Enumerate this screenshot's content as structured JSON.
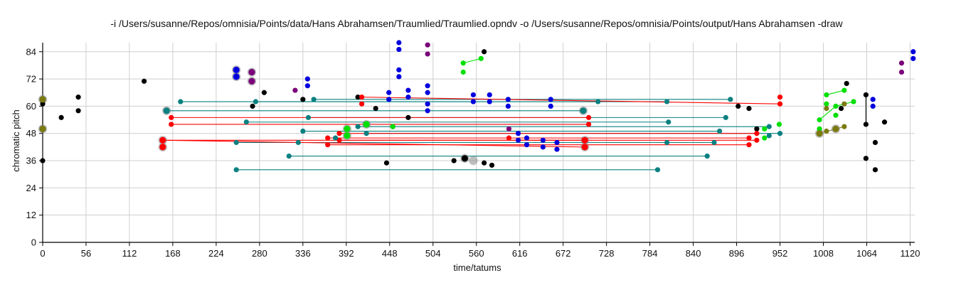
{
  "chart_data": {
    "type": "scatter",
    "title": "-i /Users/susanne/Repos/omnisia/Points/data/Hans Abrahamsen/Traumlied/Traumlied.opndv -o /Users/susanne/Repos/omnisia/Points/output/Hans Abrahamsen -draw",
    "xlabel": "time/tatums",
    "ylabel": "chromatic pitch",
    "xlim": [
      0,
      1126
    ],
    "ylim": [
      0,
      88
    ],
    "xticks": [
      0,
      56,
      112,
      168,
      224,
      280,
      336,
      392,
      448,
      504,
      560,
      616,
      672,
      728,
      784,
      840,
      896,
      952,
      1008,
      1064,
      1120
    ],
    "yticks": [
      0,
      12,
      24,
      36,
      48,
      60,
      72,
      84
    ],
    "grid": true,
    "colors": {
      "black": "#000000",
      "red": "#ff0000",
      "blue": "#0000dd",
      "teal": "#0a8080",
      "green": "#00e000",
      "purple": "#7a007a",
      "olive": "#7a7a10"
    },
    "series": [
      {
        "color": "black",
        "points": [
          [
            0,
            36
          ],
          [
            0,
            61
          ],
          [
            0,
            63
          ],
          [
            0,
            50
          ],
          [
            24,
            55
          ],
          [
            46,
            58
          ],
          [
            46,
            64
          ],
          [
            131,
            71
          ],
          [
            271,
            60
          ],
          [
            286,
            66
          ],
          [
            336,
            63
          ],
          [
            407,
            64
          ],
          [
            430,
            59
          ],
          [
            444,
            35
          ],
          [
            452,
            51
          ],
          [
            472,
            55
          ],
          [
            531,
            36
          ],
          [
            545,
            37
          ],
          [
            570,
            35
          ],
          [
            570,
            84
          ],
          [
            580,
            34
          ],
          [
            898,
            60
          ],
          [
            912,
            59
          ],
          [
            922,
            50
          ],
          [
            1031,
            59
          ],
          [
            1038,
            70
          ],
          [
            1063,
            65
          ],
          [
            1063,
            52
          ],
          [
            1063,
            37
          ],
          [
            1075,
            44
          ],
          [
            1075,
            32
          ],
          [
            1087,
            53
          ]
        ]
      },
      {
        "color": "red",
        "points": [
          [
            155,
            45
          ],
          [
            155,
            42
          ],
          [
            166,
            55
          ],
          [
            166,
            52
          ],
          [
            368,
            46
          ],
          [
            368,
            43
          ],
          [
            383,
            48
          ],
          [
            383,
            45
          ],
          [
            412,
            64
          ],
          [
            412,
            61
          ],
          [
            602,
            46
          ],
          [
            700,
            45
          ],
          [
            700,
            42
          ],
          [
            705,
            55
          ],
          [
            705,
            52
          ],
          [
            912,
            46
          ],
          [
            912,
            43
          ],
          [
            922,
            48
          ],
          [
            922,
            45
          ],
          [
            952,
            64
          ],
          [
            952,
            61
          ]
        ]
      },
      {
        "color": "blue",
        "points": [
          [
            250,
            76
          ],
          [
            250,
            73
          ],
          [
            342,
            72
          ],
          [
            342,
            69
          ],
          [
            447,
            66
          ],
          [
            447,
            63
          ],
          [
            460,
            88
          ],
          [
            460,
            85
          ],
          [
            460,
            76
          ],
          [
            460,
            73
          ],
          [
            472,
            67
          ],
          [
            472,
            64
          ],
          [
            497,
            69
          ],
          [
            497,
            66
          ],
          [
            497,
            61
          ],
          [
            497,
            58
          ],
          [
            556,
            65
          ],
          [
            556,
            62
          ],
          [
            577,
            65
          ],
          [
            577,
            62
          ],
          [
            601,
            63
          ],
          [
            601,
            60
          ],
          [
            614,
            48
          ],
          [
            614,
            45
          ],
          [
            625,
            46
          ],
          [
            625,
            43
          ],
          [
            646,
            45
          ],
          [
            646,
            42
          ],
          [
            664,
            44
          ],
          [
            664,
            41
          ],
          [
            656,
            63
          ],
          [
            656,
            60
          ],
          [
            1072,
            63
          ],
          [
            1072,
            60
          ],
          [
            1124,
            84
          ],
          [
            1124,
            81
          ]
        ]
      },
      {
        "color": "teal",
        "points": [
          [
            160,
            58
          ],
          [
            178,
            62
          ],
          [
            250,
            44
          ],
          [
            250,
            32
          ],
          [
            263,
            53
          ],
          [
            275,
            62
          ],
          [
            318,
            38
          ],
          [
            330,
            44
          ],
          [
            336,
            49
          ],
          [
            343,
            55
          ],
          [
            350,
            63
          ],
          [
            378,
            46
          ],
          [
            407,
            51
          ],
          [
            418,
            52
          ],
          [
            418,
            48
          ],
          [
            698,
            58
          ],
          [
            717,
            62
          ],
          [
            794,
            32
          ],
          [
            806,
            44
          ],
          [
            806,
            62
          ],
          [
            808,
            53
          ],
          [
            858,
            38
          ],
          [
            867,
            44
          ],
          [
            874,
            49
          ],
          [
            882,
            55
          ],
          [
            888,
            63
          ],
          [
            938,
            51
          ],
          [
            938,
            47
          ],
          [
            952,
            48
          ]
        ]
      },
      {
        "color": "green",
        "points": [
          [
            393,
            50
          ],
          [
            393,
            47
          ],
          [
            418,
            52
          ],
          [
            452,
            51
          ],
          [
            543,
            79
          ],
          [
            543,
            75
          ],
          [
            566,
            81
          ],
          [
            932,
            50
          ],
          [
            932,
            46
          ],
          [
            951,
            52
          ],
          [
            1003,
            54
          ],
          [
            1003,
            50
          ],
          [
            1012,
            65
          ],
          [
            1012,
            61
          ],
          [
            1024,
            60
          ],
          [
            1024,
            56
          ],
          [
            1035,
            67
          ],
          [
            1047,
            62
          ]
        ]
      },
      {
        "color": "purple",
        "points": [
          [
            270,
            75
          ],
          [
            270,
            71
          ],
          [
            326,
            67
          ],
          [
            497,
            87
          ],
          [
            497,
            83
          ],
          [
            602,
            50
          ],
          [
            1109,
            79
          ],
          [
            1109,
            75
          ]
        ]
      },
      {
        "color": "olive",
        "points": [
          [
            0,
            63
          ],
          [
            0,
            50
          ],
          [
            1003,
            48
          ],
          [
            1012,
            59
          ],
          [
            1012,
            49
          ],
          [
            1024,
            50
          ],
          [
            1035,
            61
          ],
          [
            1035,
            51
          ]
        ]
      }
    ],
    "segments": [
      {
        "color": "teal",
        "from": [
          160,
          58
        ],
        "to": [
          698,
          58
        ]
      },
      {
        "color": "teal",
        "from": [
          178,
          62
        ],
        "to": [
          717,
          62
        ]
      },
      {
        "color": "teal",
        "from": [
          250,
          44
        ],
        "to": [
          806,
          44
        ]
      },
      {
        "color": "teal",
        "from": [
          250,
          32
        ],
        "to": [
          794,
          32
        ]
      },
      {
        "color": "teal",
        "from": [
          263,
          53
        ],
        "to": [
          808,
          53
        ]
      },
      {
        "color": "teal",
        "from": [
          275,
          62
        ],
        "to": [
          806,
          62
        ]
      },
      {
        "color": "teal",
        "from": [
          318,
          38
        ],
        "to": [
          858,
          38
        ]
      },
      {
        "color": "teal",
        "from": [
          330,
          44
        ],
        "to": [
          867,
          44
        ]
      },
      {
        "color": "teal",
        "from": [
          336,
          49
        ],
        "to": [
          874,
          49
        ]
      },
      {
        "color": "teal",
        "from": [
          343,
          55
        ],
        "to": [
          882,
          55
        ]
      },
      {
        "color": "teal",
        "from": [
          350,
          63
        ],
        "to": [
          888,
          63
        ]
      },
      {
        "color": "teal",
        "from": [
          407,
          51
        ],
        "to": [
          938,
          51
        ]
      },
      {
        "color": "teal",
        "from": [
          418,
          48
        ],
        "to": [
          952,
          48
        ]
      },
      {
        "color": "red",
        "from": [
          155,
          45
        ],
        "to": [
          700,
          45
        ]
      },
      {
        "color": "red",
        "from": [
          155,
          45
        ],
        "to": [
          700,
          42
        ]
      },
      {
        "color": "red",
        "from": [
          166,
          55
        ],
        "to": [
          705,
          55
        ]
      },
      {
        "color": "red",
        "from": [
          166,
          52
        ],
        "to": [
          705,
          52
        ]
      },
      {
        "color": "red",
        "from": [
          368,
          46
        ],
        "to": [
          912,
          46
        ]
      },
      {
        "color": "red",
        "from": [
          368,
          43
        ],
        "to": [
          912,
          43
        ]
      },
      {
        "color": "red",
        "from": [
          383,
          48
        ],
        "to": [
          922,
          48
        ]
      },
      {
        "color": "red",
        "from": [
          383,
          45
        ],
        "to": [
          922,
          45
        ]
      },
      {
        "color": "red",
        "from": [
          412,
          64
        ],
        "to": [
          952,
          61
        ]
      },
      {
        "color": "green",
        "from": [
          543,
          79
        ],
        "to": [
          566,
          81
        ]
      },
      {
        "color": "green",
        "from": [
          1003,
          54
        ],
        "to": [
          1024,
          60
        ]
      },
      {
        "color": "green",
        "from": [
          1012,
          65
        ],
        "to": [
          1035,
          67
        ]
      },
      {
        "color": "green",
        "from": [
          1024,
          60
        ],
        "to": [
          1047,
          62
        ]
      },
      {
        "color": "olive",
        "from": [
          1003,
          48
        ],
        "to": [
          1035,
          51
        ]
      },
      {
        "color": "black",
        "from": [
          0,
          63
        ],
        "to": [
          0,
          50
        ]
      },
      {
        "color": "black",
        "from": [
          1063,
          65
        ],
        "to": [
          1063,
          52
        ]
      }
    ],
    "big_markers": [
      [
        0,
        63
      ],
      [
        0,
        50
      ],
      [
        155,
        45
      ],
      [
        155,
        42
      ],
      [
        160,
        58
      ],
      [
        250,
        76
      ],
      [
        250,
        73
      ],
      [
        270,
        75
      ],
      [
        270,
        71
      ],
      [
        393,
        50
      ],
      [
        393,
        47
      ],
      [
        418,
        52
      ],
      [
        545,
        37
      ],
      [
        556,
        36
      ],
      [
        698,
        58
      ],
      [
        700,
        45
      ],
      [
        700,
        42
      ],
      [
        1003,
        48
      ],
      [
        1024,
        50
      ]
    ]
  }
}
